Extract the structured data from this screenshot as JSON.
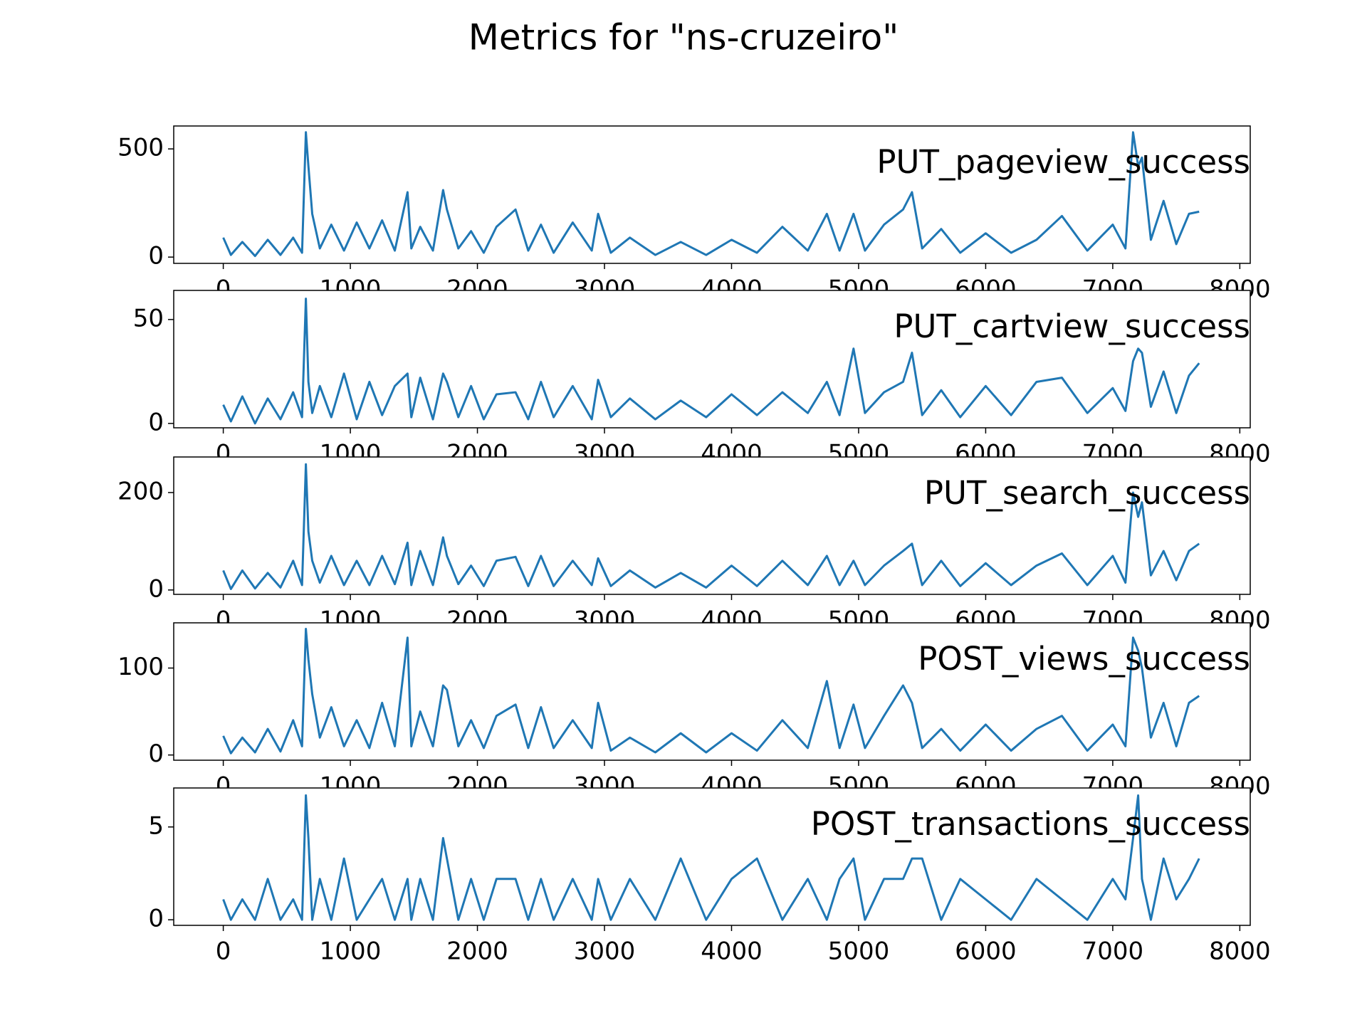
{
  "title": "Metrics for \"ns-cruzeiro\"",
  "chart_data": [
    {
      "type": "line",
      "annotation": "PUT_pageview_success",
      "color": "#1f77b4",
      "x": [
        0,
        60,
        150,
        250,
        350,
        450,
        550,
        620,
        650,
        670,
        700,
        760,
        850,
        950,
        1050,
        1150,
        1250,
        1350,
        1450,
        1480,
        1550,
        1650,
        1730,
        1760,
        1850,
        1950,
        2050,
        2150,
        2300,
        2400,
        2500,
        2600,
        2750,
        2900,
        2950,
        3050,
        3200,
        3400,
        3600,
        3800,
        4000,
        4200,
        4400,
        4600,
        4750,
        4850,
        4960,
        5050,
        5200,
        5350,
        5420,
        5500,
        5650,
        5800,
        6000,
        6200,
        6400,
        6600,
        6800,
        7000,
        7100,
        7160,
        7200,
        7230,
        7300,
        7400,
        7500,
        7600,
        7680
      ],
      "values": [
        90,
        10,
        70,
        5,
        80,
        10,
        90,
        20,
        577,
        420,
        200,
        40,
        150,
        30,
        160,
        40,
        170,
        30,
        300,
        40,
        140,
        30,
        310,
        220,
        40,
        120,
        20,
        140,
        220,
        30,
        150,
        20,
        160,
        30,
        200,
        20,
        90,
        10,
        70,
        10,
        80,
        20,
        140,
        30,
        200,
        30,
        200,
        30,
        150,
        220,
        300,
        40,
        130,
        20,
        110,
        20,
        80,
        190,
        30,
        150,
        40,
        577,
        420,
        460,
        80,
        260,
        60,
        200,
        210
      ],
      "xlim": [
        -390,
        8082
      ],
      "xticks": [
        0,
        1000,
        2000,
        3000,
        4000,
        5000,
        6000,
        7000,
        8000
      ],
      "ylim": [
        -29,
        606
      ],
      "yticks": [
        0,
        500
      ]
    },
    {
      "type": "line",
      "annotation": "PUT_cartview_success",
      "color": "#1f77b4",
      "x": [
        0,
        60,
        150,
        250,
        350,
        450,
        550,
        620,
        650,
        670,
        700,
        760,
        850,
        950,
        1050,
        1150,
        1250,
        1350,
        1450,
        1480,
        1550,
        1650,
        1730,
        1760,
        1850,
        1950,
        2050,
        2150,
        2300,
        2400,
        2500,
        2600,
        2750,
        2900,
        2950,
        3050,
        3200,
        3400,
        3600,
        3800,
        4000,
        4200,
        4400,
        4600,
        4750,
        4850,
        4960,
        5050,
        5200,
        5350,
        5420,
        5500,
        5650,
        5800,
        6000,
        6200,
        6400,
        6600,
        6800,
        7000,
        7100,
        7160,
        7200,
        7230,
        7300,
        7400,
        7500,
        7600,
        7680
      ],
      "values": [
        9,
        1,
        13,
        0,
        12,
        2,
        15,
        3,
        60,
        20,
        5,
        18,
        3,
        24,
        2,
        20,
        4,
        18,
        24,
        3,
        22,
        2,
        24,
        20,
        3,
        18,
        2,
        14,
        15,
        2,
        20,
        3,
        18,
        2,
        21,
        3,
        12,
        2,
        11,
        3,
        14,
        4,
        15,
        5,
        20,
        4,
        36,
        5,
        15,
        20,
        34,
        4,
        16,
        3,
        18,
        4,
        20,
        22,
        5,
        17,
        6,
        30,
        36,
        34,
        8,
        25,
        5,
        23,
        29
      ],
      "xlim": [
        -390,
        8082
      ],
      "xticks": [
        0,
        1000,
        2000,
        3000,
        4000,
        5000,
        6000,
        7000,
        8000
      ],
      "ylim": [
        -2.1,
        64
      ],
      "yticks": [
        0,
        50
      ]
    },
    {
      "type": "line",
      "annotation": "PUT_search_success",
      "color": "#1f77b4",
      "x": [
        0,
        60,
        150,
        250,
        350,
        450,
        550,
        620,
        650,
        670,
        700,
        760,
        850,
        950,
        1050,
        1150,
        1250,
        1350,
        1450,
        1480,
        1550,
        1650,
        1730,
        1760,
        1850,
        1950,
        2050,
        2150,
        2300,
        2400,
        2500,
        2600,
        2750,
        2900,
        2950,
        3050,
        3200,
        3400,
        3600,
        3800,
        4000,
        4200,
        4400,
        4600,
        4750,
        4850,
        4960,
        5050,
        5200,
        5350,
        5420,
        5500,
        5650,
        5800,
        6000,
        6200,
        6400,
        6600,
        6800,
        7000,
        7100,
        7160,
        7200,
        7230,
        7300,
        7400,
        7500,
        7600,
        7680
      ],
      "values": [
        40,
        2,
        40,
        3,
        35,
        5,
        60,
        10,
        258,
        120,
        60,
        15,
        70,
        10,
        60,
        10,
        70,
        12,
        97,
        10,
        80,
        10,
        108,
        70,
        12,
        50,
        8,
        60,
        68,
        8,
        70,
        8,
        60,
        10,
        65,
        8,
        40,
        5,
        35,
        5,
        50,
        8,
        60,
        10,
        70,
        10,
        60,
        10,
        50,
        80,
        95,
        10,
        60,
        8,
        55,
        10,
        50,
        75,
        10,
        70,
        15,
        200,
        150,
        180,
        30,
        80,
        20,
        80,
        95
      ],
      "xlim": [
        -390,
        8082
      ],
      "xticks": [
        0,
        1000,
        2000,
        3000,
        4000,
        5000,
        6000,
        7000,
        8000
      ],
      "ylim": [
        -9,
        273
      ],
      "yticks": [
        0,
        200
      ]
    },
    {
      "type": "line",
      "annotation": "POST_views_success",
      "color": "#1f77b4",
      "x": [
        0,
        60,
        150,
        250,
        350,
        450,
        550,
        620,
        650,
        670,
        700,
        760,
        850,
        950,
        1050,
        1150,
        1250,
        1350,
        1450,
        1480,
        1550,
        1650,
        1730,
        1760,
        1850,
        1950,
        2050,
        2150,
        2300,
        2400,
        2500,
        2600,
        2750,
        2900,
        2950,
        3050,
        3200,
        3400,
        3600,
        3800,
        4000,
        4200,
        4400,
        4600,
        4750,
        4850,
        4960,
        5050,
        5200,
        5350,
        5420,
        5500,
        5650,
        5800,
        6000,
        6200,
        6400,
        6600,
        6800,
        7000,
        7100,
        7160,
        7200,
        7230,
        7300,
        7400,
        7500,
        7600,
        7680
      ],
      "values": [
        22,
        2,
        20,
        3,
        30,
        4,
        40,
        10,
        145,
        110,
        70,
        20,
        55,
        10,
        40,
        8,
        60,
        10,
        135,
        10,
        50,
        10,
        80,
        75,
        10,
        40,
        8,
        45,
        58,
        8,
        55,
        8,
        40,
        8,
        60,
        5,
        20,
        3,
        25,
        3,
        25,
        5,
        40,
        8,
        85,
        8,
        58,
        8,
        45,
        80,
        60,
        8,
        30,
        5,
        35,
        5,
        30,
        45,
        5,
        35,
        10,
        135,
        120,
        100,
        20,
        60,
        10,
        60,
        68
      ],
      "xlim": [
        -390,
        8082
      ],
      "xticks": [
        0,
        1000,
        2000,
        3000,
        4000,
        5000,
        6000,
        7000,
        8000
      ],
      "ylim": [
        -6,
        152
      ],
      "yticks": [
        0,
        100
      ]
    },
    {
      "type": "line",
      "annotation": "POST_transactions_success",
      "color": "#1f77b4",
      "x": [
        0,
        60,
        150,
        250,
        350,
        450,
        550,
        620,
        650,
        670,
        700,
        760,
        850,
        950,
        1050,
        1150,
        1250,
        1350,
        1450,
        1480,
        1550,
        1650,
        1730,
        1760,
        1850,
        1950,
        2050,
        2150,
        2300,
        2400,
        2500,
        2600,
        2750,
        2900,
        2950,
        3050,
        3200,
        3400,
        3600,
        3800,
        4000,
        4200,
        4400,
        4600,
        4750,
        4850,
        4960,
        5050,
        5200,
        5350,
        5420,
        5500,
        5650,
        5800,
        6000,
        6200,
        6400,
        6600,
        6800,
        7000,
        7100,
        7160,
        7200,
        7230,
        7300,
        7400,
        7500,
        7600,
        7680
      ],
      "values": [
        1.1,
        0,
        1.1,
        0,
        2.2,
        0,
        1.1,
        0,
        6.7,
        4.4,
        0,
        2.2,
        0,
        3.3,
        0,
        1.1,
        2.2,
        0,
        2.2,
        0,
        2.2,
        0,
        4.4,
        3.3,
        0,
        2.2,
        0,
        2.2,
        2.2,
        0,
        2.2,
        0,
        2.2,
        0,
        2.2,
        0,
        2.2,
        0,
        3.3,
        0,
        2.2,
        3.3,
        0,
        2.2,
        0,
        2.2,
        3.3,
        0,
        2.2,
        2.2,
        3.3,
        3.3,
        0,
        2.2,
        1.1,
        0,
        2.2,
        1.1,
        0,
        2.2,
        1.1,
        4.4,
        6.7,
        2.2,
        0,
        3.3,
        1.1,
        2.2,
        3.3
      ],
      "xlim": [
        -390,
        8082
      ],
      "xticks": [
        0,
        1000,
        2000,
        3000,
        4000,
        5000,
        6000,
        7000,
        8000
      ],
      "ylim": [
        -0.3,
        7.1
      ],
      "yticks": [
        0,
        5
      ]
    }
  ]
}
